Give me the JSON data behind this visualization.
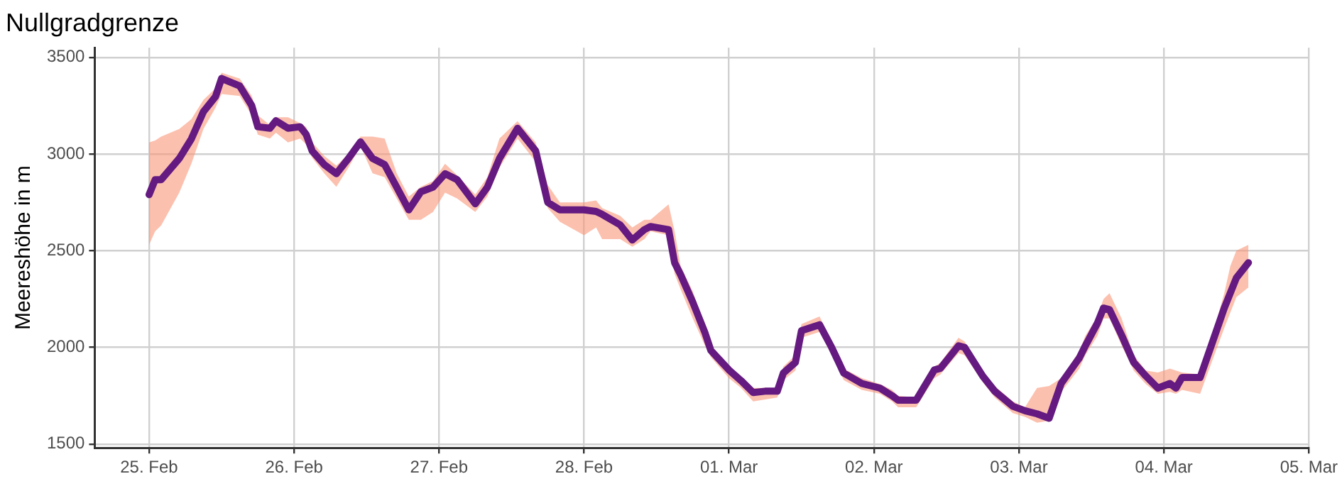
{
  "chart_data": {
    "type": "line",
    "title": "Nullgradgrenze",
    "ylabel": "Meereshöhe in m",
    "x": [
      "--02-25T00:00",
      "--02-25T01:00",
      "--02-25T02:00",
      "--02-25T05:00",
      "--02-25T07:00",
      "--02-25T09:00",
      "--02-25T11:00",
      "--02-25T12:00",
      "--02-25T15:00",
      "--02-25T17:00",
      "--02-25T18:00",
      "--02-25T20:00",
      "--02-25T21:00",
      "--02-25T23:00",
      "--02-26T01:00",
      "--02-26T02:00",
      "--02-26T03:00",
      "--02-26T05:00",
      "--02-26T07:00",
      "--02-26T09:00",
      "--02-26T11:00",
      "--02-26T13:00",
      "--02-26T15:00",
      "--02-26T17:00",
      "--02-26T19:00",
      "--02-26T21:00",
      "--02-26T23:00",
      "--02-27T01:00",
      "--02-27T03:00",
      "--02-27T06:00",
      "--02-27T08:00",
      "--02-27T10:00",
      "--02-27T13:00",
      "--02-27T16:00",
      "--02-27T18:00",
      "--02-27T20:00",
      "--02-28T00:00",
      "--02-28T02:00",
      "--02-28T03:00",
      "--02-28T06:00",
      "--02-28T08:00",
      "--02-28T10:00",
      "--02-28T11:00",
      "--02-28T14:00",
      "--02-28T15:00",
      "--02-28T16:00",
      "--02-28T18:00",
      "--02-28T20:00",
      "--02-28T21:00",
      "--03-01T00:00",
      "--03-01T02:00",
      "--03-01T04:00",
      "--03-01T06:00",
      "--03-01T08:00",
      "--03-01T09:00",
      "--03-01T11:00",
      "--03-01T12:00",
      "--03-01T15:00",
      "--03-01T17:00",
      "--03-01T19:00",
      "--03-01T22:00",
      "--03-02T01:00",
      "--03-02T03:00",
      "--03-02T04:00",
      "--03-02T07:00",
      "--03-02T10:00",
      "--03-02T11:00",
      "--03-02T14:00",
      "--03-02T15:00",
      "--03-02T18:00",
      "--03-02T20:00",
      "--03-02T23:00",
      "--03-03T01:00",
      "--03-03T03:00",
      "--03-03T05:00",
      "--03-03T07:00",
      "--03-03T10:00",
      "--03-03T11:00",
      "--03-03T13:00",
      "--03-03T14:00",
      "--03-03T15:00",
      "--03-03T17:00",
      "--03-03T19:00",
      "--03-03T21:00",
      "--03-03T23:00",
      "--03-04T01:00",
      "--03-04T02:00",
      "--03-04T03:00",
      "--03-04T06:00",
      "--03-04T08:00",
      "--03-04T10:00",
      "--03-04T11:00",
      "--03-04T12:00",
      "--03-04T14:00"
    ],
    "series": [
      {
        "color": "#641a80",
        "values": [
          2790,
          2867,
          2867,
          2977,
          3078,
          3219,
          3297,
          3391,
          3352,
          3250,
          3141,
          3133,
          3172,
          3133,
          3141,
          3102,
          3016,
          2945,
          2898,
          2977,
          3063,
          2977,
          2945,
          2828,
          2711,
          2805,
          2828,
          2898,
          2867,
          2742,
          2828,
          2977,
          3133,
          3016,
          2750,
          2711,
          2711,
          2703,
          2688,
          2633,
          2555,
          2609,
          2625,
          2609,
          2438,
          2375,
          2234,
          2078,
          1984,
          1883,
          1828,
          1766,
          1773,
          1773,
          1867,
          1922,
          2086,
          2117,
          2000,
          1867,
          1813,
          1789,
          1750,
          1727,
          1727,
          1883,
          1891,
          2008,
          2000,
          1852,
          1773,
          1695,
          1672,
          1656,
          1633,
          1813,
          1945,
          2008,
          2125,
          2203,
          2195,
          2063,
          1922,
          1852,
          1789,
          1813,
          1789,
          1844,
          1844,
          2023,
          2203,
          2281,
          2359,
          2438
        ],
        "lower": [
          2530,
          2600,
          2630,
          2800,
          2950,
          3130,
          3240,
          3310,
          3300,
          3200,
          3100,
          3080,
          3110,
          3060,
          3080,
          3050,
          2980,
          2900,
          2830,
          2930,
          3040,
          2900,
          2880,
          2770,
          2660,
          2660,
          2700,
          2800,
          2770,
          2700,
          2780,
          2930,
          3080,
          2960,
          2720,
          2650,
          2580,
          2620,
          2560,
          2560,
          2520,
          2560,
          2600,
          2580,
          2380,
          2300,
          2150,
          2010,
          1950,
          1840,
          1790,
          1720,
          1730,
          1740,
          1830,
          1880,
          2050,
          2080,
          1960,
          1830,
          1780,
          1760,
          1720,
          1690,
          1690,
          1840,
          1860,
          1970,
          1960,
          1820,
          1740,
          1660,
          1640,
          1610,
          1620,
          1770,
          1890,
          1960,
          2060,
          2150,
          2150,
          2010,
          1880,
          1810,
          1760,
          1770,
          1760,
          1780,
          1760,
          1930,
          2100,
          2180,
          2260,
          2310
        ],
        "upper": [
          3060,
          3070,
          3090,
          3130,
          3180,
          3280,
          3340,
          3420,
          3390,
          3300,
          3200,
          3150,
          3190,
          3190,
          3160,
          3140,
          3060,
          2990,
          2940,
          3000,
          3090,
          3090,
          3080,
          2900,
          2780,
          2830,
          2860,
          2950,
          2890,
          2790,
          2880,
          3080,
          3170,
          3060,
          2840,
          2750,
          2750,
          2760,
          2720,
          2680,
          2620,
          2660,
          2660,
          2740,
          2600,
          2420,
          2290,
          2110,
          2000,
          1900,
          1850,
          1790,
          1790,
          1790,
          1900,
          1960,
          2120,
          2160,
          2030,
          1890,
          1840,
          1810,
          1780,
          1750,
          1740,
          1900,
          1920,
          2050,
          2030,
          1880,
          1800,
          1720,
          1690,
          1790,
          1800,
          1840,
          1980,
          2060,
          2160,
          2250,
          2280,
          2150,
          1960,
          1880,
          1870,
          1890,
          1880,
          1870,
          1860,
          2060,
          2280,
          2420,
          2500,
          2530
        ]
      }
    ],
    "xlim": [
      "--02-24T15:00",
      "--03-05T00:00"
    ],
    "xticks": [
      {
        "value": "--02-25",
        "label": "25. Feb"
      },
      {
        "value": "--02-26",
        "label": "26. Feb"
      },
      {
        "value": "--02-27",
        "label": "27. Feb"
      },
      {
        "value": "--02-28",
        "label": "28. Feb"
      },
      {
        "value": "--03-01",
        "label": "01. Mar"
      },
      {
        "value": "--03-02",
        "label": "02. Mar"
      },
      {
        "value": "--03-03",
        "label": "03. Mar"
      },
      {
        "value": "--03-04",
        "label": "04. Mar"
      },
      {
        "value": "--03-05",
        "label": "05. Mar"
      }
    ],
    "ylim": [
      1480,
      3550
    ],
    "yticks": [
      1500,
      2000,
      2500,
      3000,
      3500
    ],
    "grid": true,
    "legend": false
  }
}
